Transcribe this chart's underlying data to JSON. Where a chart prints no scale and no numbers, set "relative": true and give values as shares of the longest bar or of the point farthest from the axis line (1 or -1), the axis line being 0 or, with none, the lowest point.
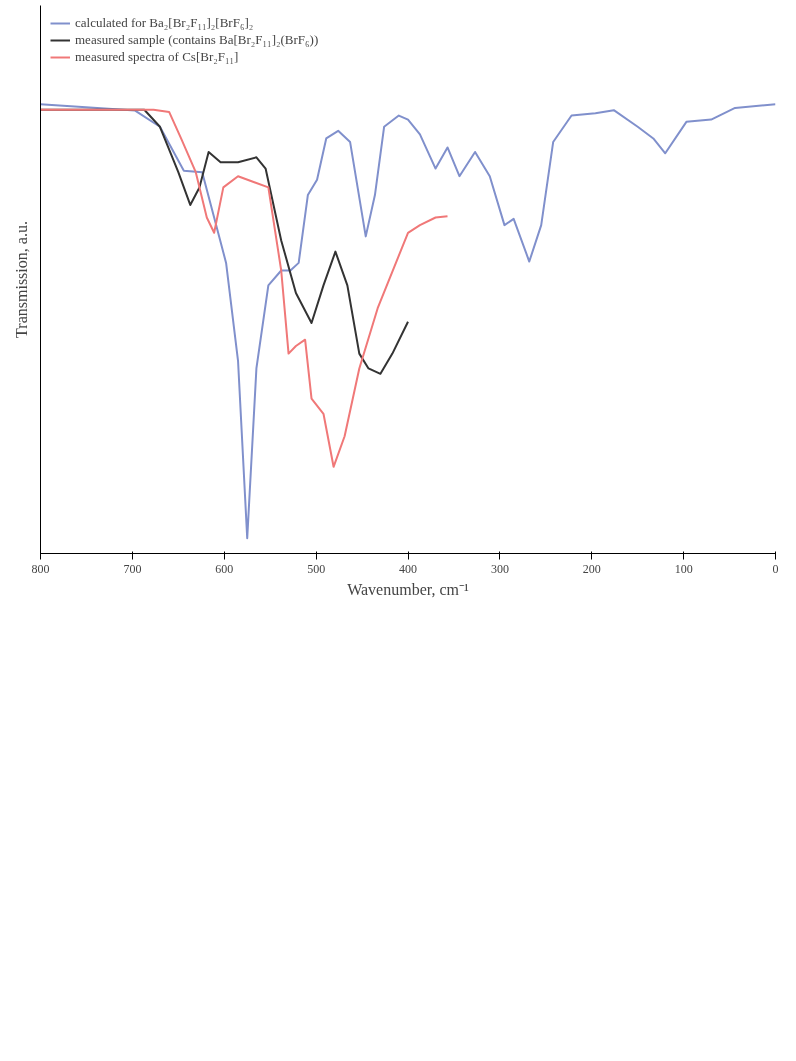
{
  "chart_data": {
    "type": "line",
    "relative": true,
    "xlabel": "Wavenumber, cm⁻¹",
    "ylabel": "Transmission, a.u.",
    "xlim": [
      800,
      0
    ],
    "xticks": [
      800,
      700,
      600,
      500,
      400,
      300,
      200,
      100,
      0
    ],
    "legend": "top left",
    "grid": false,
    "marker": "none",
    "line_style": "solid",
    "series": [
      {
        "name": "calculated for Ba₂[Br₂F₁₁]₂[BrF₆]₂",
        "color": "#8090cc",
        "x": [
          800,
          697,
          670,
          644,
          624,
          611,
          598,
          585,
          575,
          565,
          552,
          538,
          528,
          519,
          509,
          499,
          489,
          476,
          463,
          446,
          436,
          426,
          410,
          400,
          387,
          370,
          357,
          344,
          327,
          311,
          295,
          285,
          268,
          255,
          242,
          222,
          196,
          176,
          150,
          133,
          120,
          97,
          70,
          44,
          0
        ],
        "values": [
          1.0,
          0.986,
          0.95,
          0.852,
          0.849,
          0.748,
          0.647,
          0.429,
          0.034,
          0.412,
          0.597,
          0.63,
          0.63,
          0.647,
          0.798,
          0.832,
          0.924,
          0.941,
          0.916,
          0.706,
          0.798,
          0.95,
          0.975,
          0.966,
          0.933,
          0.857,
          0.904,
          0.84,
          0.894,
          0.84,
          0.731,
          0.745,
          0.65,
          0.731,
          0.916,
          0.975,
          0.98,
          0.987,
          0.95,
          0.924,
          0.891,
          0.961,
          0.966,
          0.992,
          1.0
        ]
      },
      {
        "name": "measured sample (contains Ba[Br₂F₁₁]₂(BrF₆))",
        "color": "#333333",
        "x": [
          800,
          687,
          670,
          650,
          637,
          627,
          617,
          604,
          585,
          565,
          555,
          538,
          522,
          505,
          492,
          479,
          466,
          453,
          443,
          430,
          417,
          400
        ],
        "values": [
          0.988,
          0.988,
          0.95,
          0.849,
          0.776,
          0.815,
          0.894,
          0.871,
          0.871,
          0.882,
          0.857,
          0.697,
          0.58,
          0.513,
          0.597,
          0.672,
          0.597,
          0.445,
          0.412,
          0.4,
          0.445,
          0.516
        ]
      },
      {
        "name": "measured spectra of Cs[Br₂F₁₁]",
        "color": "#f07878",
        "x": [
          800,
          677,
          660,
          647,
          631,
          619,
          611,
          601,
          585,
          552,
          538,
          530,
          522,
          512,
          505,
          492,
          481,
          469,
          453,
          433,
          400,
          387,
          370,
          357
        ],
        "values": [
          0.988,
          0.988,
          0.983,
          0.924,
          0.849,
          0.748,
          0.714,
          0.815,
          0.84,
          0.815,
          0.63,
          0.445,
          0.462,
          0.476,
          0.345,
          0.311,
          0.193,
          0.261,
          0.412,
          0.546,
          0.714,
          0.731,
          0.748,
          0.751
        ]
      }
    ]
  }
}
